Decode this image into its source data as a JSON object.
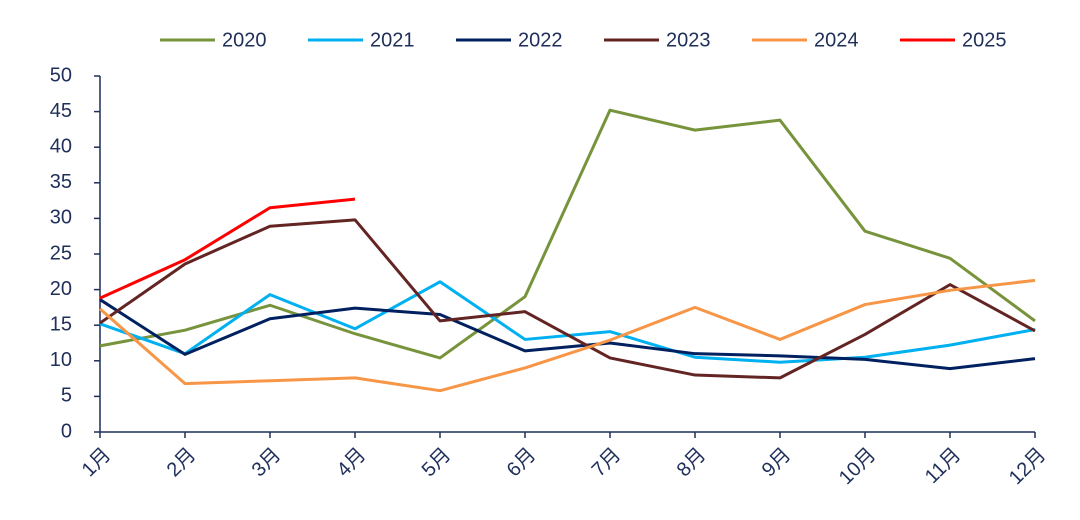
{
  "chart_data": {
    "type": "line",
    "categories": [
      "1月",
      "2月",
      "3月",
      "4月",
      "5月",
      "6月",
      "7月",
      "8月",
      "9月",
      "10月",
      "11月",
      "12月"
    ],
    "series": [
      {
        "name": "2020",
        "color": "#77933c",
        "values": [
          12.1,
          14.3,
          17.8,
          13.8,
          10.4,
          19,
          45.2,
          42.4,
          43.8,
          28.2,
          24.4,
          15.6
        ]
      },
      {
        "name": "2021",
        "color": "#00b0f0",
        "values": [
          15.2,
          11,
          19.3,
          14.5,
          21.1,
          13,
          14.1,
          10.5,
          9.8,
          10.5,
          12.2,
          14.4
        ]
      },
      {
        "name": "2022",
        "color": "#002060",
        "values": [
          18.6,
          10.9,
          15.9,
          17.4,
          16.5,
          11.4,
          12.5,
          11,
          10.7,
          10.2,
          8.9,
          10.3
        ]
      },
      {
        "name": "2023",
        "color": "#632523",
        "values": [
          15.3,
          23.6,
          28.9,
          29.8,
          15.6,
          16.9,
          10.4,
          8,
          7.6,
          13.7,
          20.7,
          14.2
        ]
      },
      {
        "name": "2024",
        "color": "#f79646",
        "values": [
          17.3,
          6.8,
          7.2,
          7.6,
          5.8,
          9,
          12.9,
          17.5,
          13,
          17.9,
          19.9,
          21.3
        ]
      },
      {
        "name": "2025",
        "color": "#ff0000",
        "values": [
          18.8,
          24.2,
          31.5,
          32.7,
          null,
          null,
          null,
          null,
          null,
          null,
          null,
          null
        ]
      }
    ],
    "ylim": [
      0,
      50
    ],
    "yticks": [
      0,
      5,
      10,
      15,
      20,
      25,
      30,
      35,
      40,
      45,
      50
    ],
    "legend": "top"
  }
}
